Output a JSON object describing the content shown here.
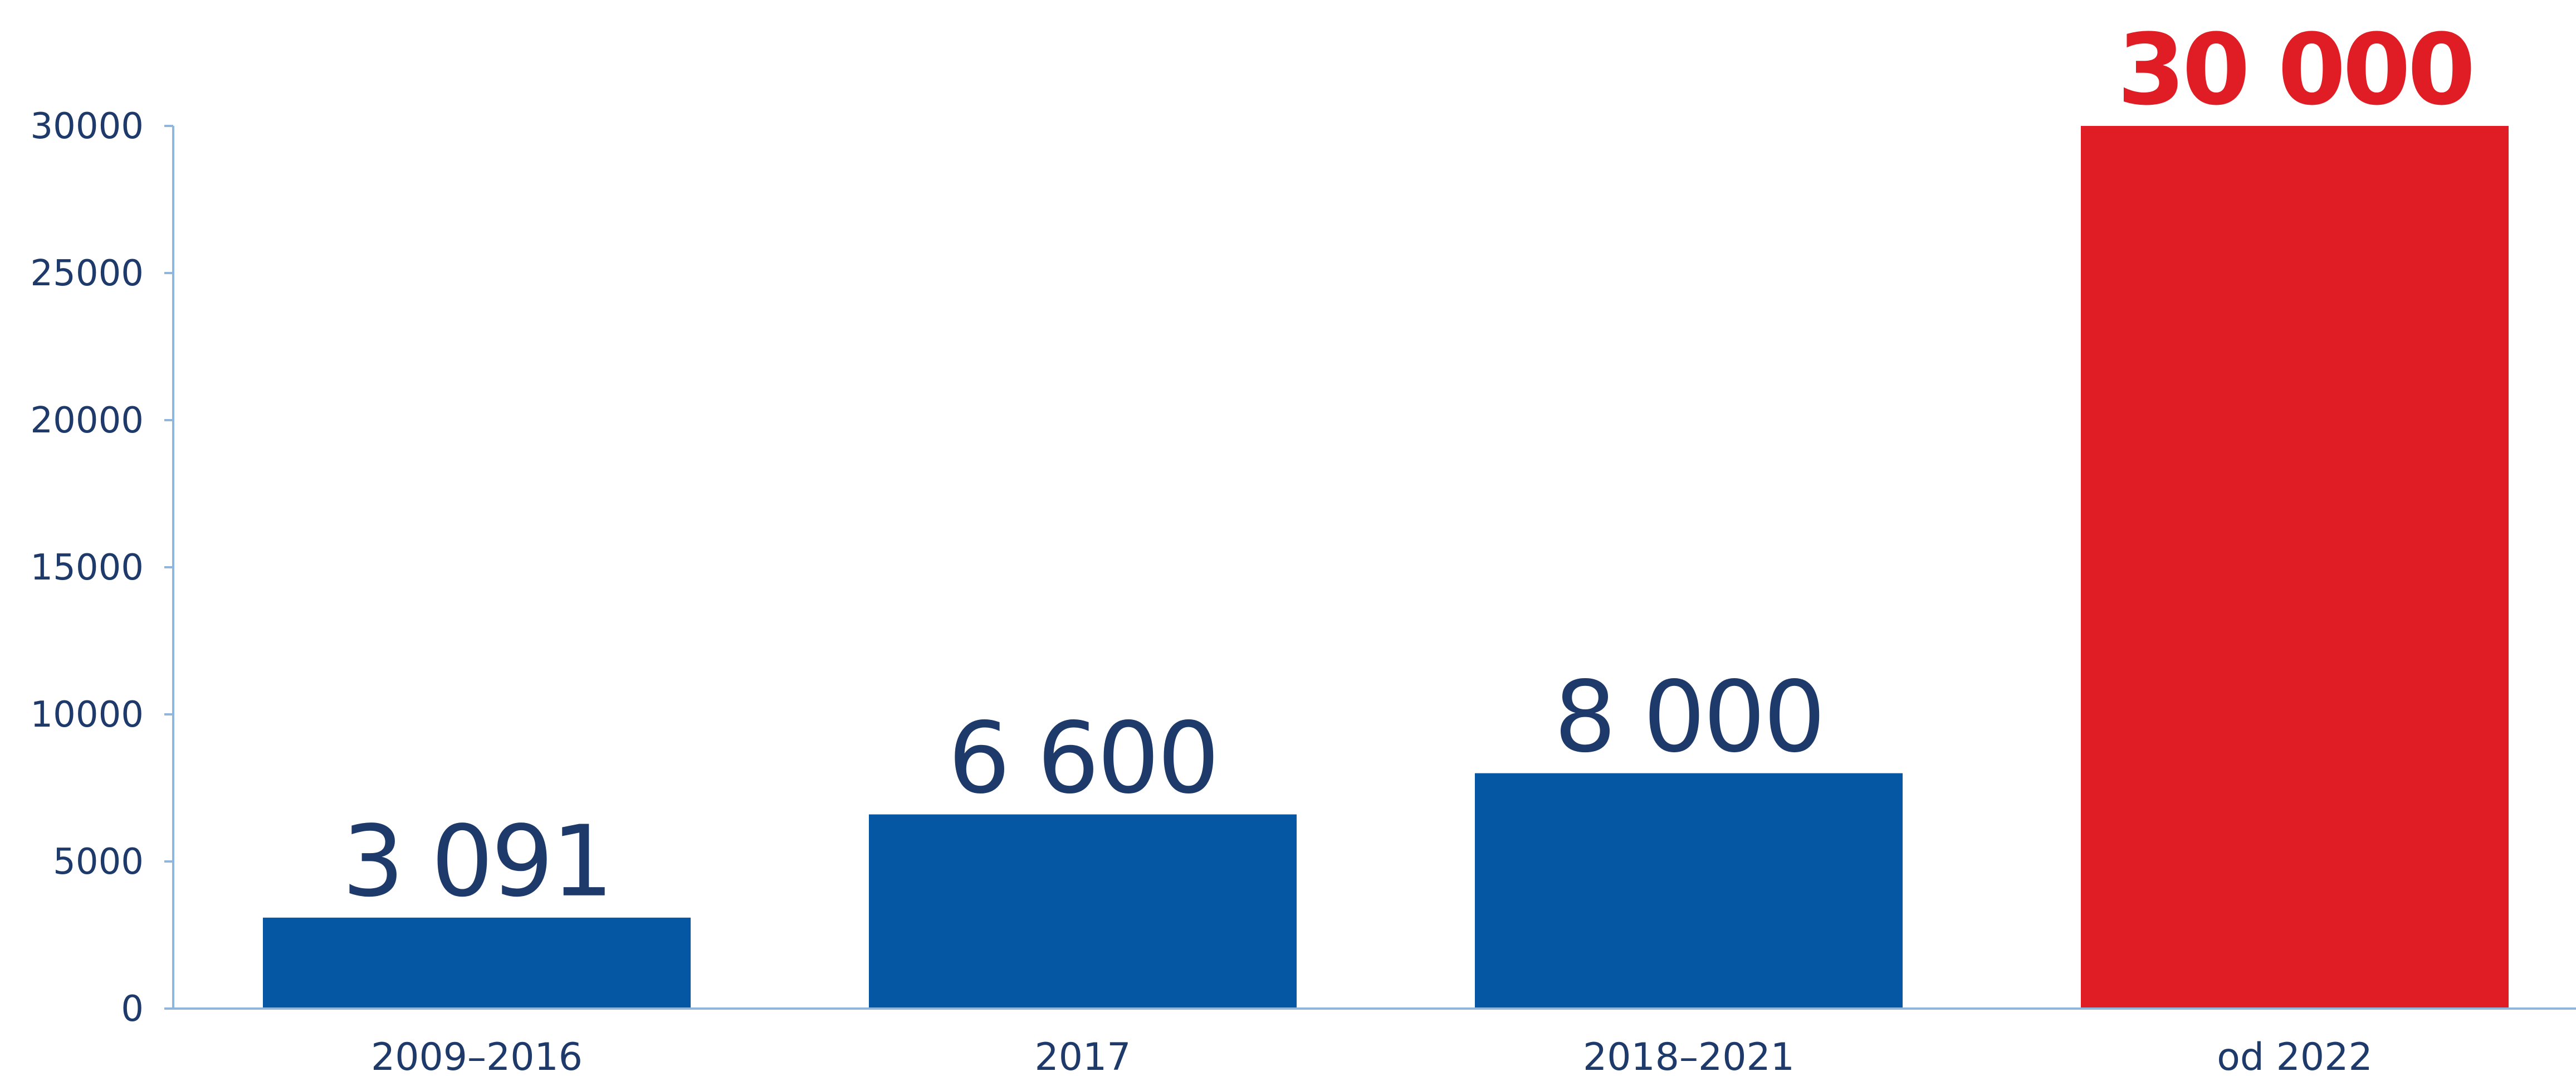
{
  "chart_data": {
    "type": "bar",
    "title": "",
    "xlabel": "",
    "ylabel": "",
    "categories": [
      "2009–2016",
      "2017",
      "2018–2021",
      "od 2022"
    ],
    "values": [
      3091,
      6600,
      8000,
      30000
    ],
    "value_labels": [
      "3 091",
      "6 600",
      "8 000",
      "30 000"
    ],
    "ylim": [
      0,
      30000
    ],
    "yticks": [
      0,
      5000,
      10000,
      15000,
      20000,
      25000,
      30000
    ],
    "ytick_labels": [
      "0",
      "5000",
      "10000",
      "15000",
      "20000",
      "25000",
      "30000"
    ],
    "grid": false,
    "legend": "none",
    "colors": {
      "bar": "#0557a4",
      "highlight_bar": "#e01c24",
      "axis": "#8fb6dd",
      "text": "#1e3a6a",
      "highlight_text": "#e01c24"
    },
    "highlight_index": 3
  }
}
